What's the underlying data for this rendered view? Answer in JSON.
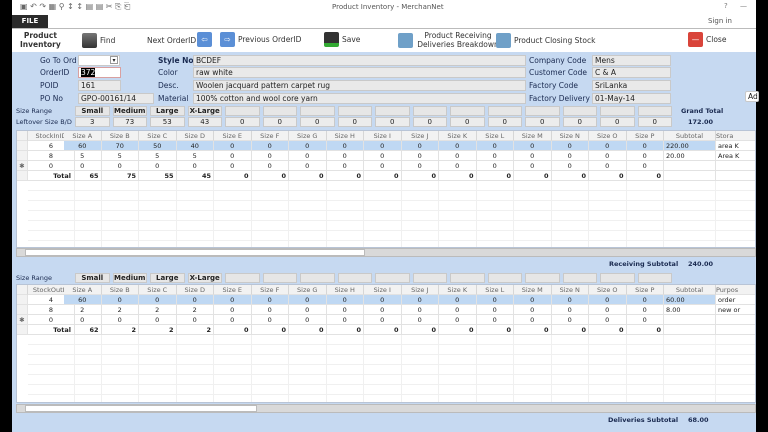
{
  "window": {
    "title": "Product Inventory - MerchanNet",
    "help": "?",
    "minimize": "—",
    "sign_in": "Sign in",
    "file_tab": "FILE"
  },
  "toolbar": {
    "form_title": "Product Inventory",
    "find": "Find",
    "next": "Next OrderID",
    "previous": "Previous OrderID",
    "save": "Save",
    "receiving": "Product Receiving Deliveries Breakdown",
    "closing": "Product Closing Stock",
    "close": "Close"
  },
  "header": {
    "go_to_ord": {
      "label": "Go To Ord",
      "value": ""
    },
    "order_id": {
      "label": "OrderID",
      "value": "372"
    },
    "poid": {
      "label": "POID",
      "value": "161"
    },
    "po_no": {
      "label": "PO No",
      "value": "GPO-00161/14"
    },
    "style_no": {
      "label": "Style No",
      "value": "BCDEF"
    },
    "color": {
      "label": "Color",
      "value": "raw white"
    },
    "desc": {
      "label": "Desc.",
      "value": "Woolen jacquard pattern carpet rug"
    },
    "material": {
      "label": "Material",
      "value": "100% cotton and wool core yarn"
    },
    "company_code": {
      "label": "Company Code",
      "value": "Mens"
    },
    "customer_code": {
      "label": "Customer Code",
      "value": "C & A"
    },
    "factory_code": {
      "label": "Factory Code",
      "value": "SriLanka"
    },
    "factory_delivery": {
      "label": "Factory Delivery",
      "value": "01-May-14"
    },
    "add_button": "Ad"
  },
  "size_range": {
    "label": "Size Range",
    "sizes": [
      "Small",
      "Medium",
      "Large",
      "X-Large",
      "",
      "",
      "",
      "",
      "",
      "",
      "",
      "",
      "",
      "",
      "",
      ""
    ]
  },
  "leftover": {
    "label": "Leftover Size B/D",
    "values": [
      "3",
      "73",
      "53",
      "43",
      "0",
      "0",
      "0",
      "0",
      "0",
      "0",
      "0",
      "0",
      "0",
      "0",
      "0",
      "0"
    ]
  },
  "grand_total": {
    "label": "Grand Total",
    "value": "172.00"
  },
  "receiving": {
    "columns": [
      "StockInID",
      "Size A",
      "Size B",
      "Size C",
      "Size D",
      "Size E",
      "Size F",
      "Size G",
      "Size H",
      "Size I",
      "Size J",
      "Size K",
      "Size L",
      "Size M",
      "Size N",
      "Size O",
      "Size P",
      "Subtotal",
      "Stora"
    ],
    "rows": [
      [
        "6",
        "60",
        "70",
        "50",
        "40",
        "0",
        "0",
        "0",
        "0",
        "0",
        "0",
        "0",
        "0",
        "0",
        "0",
        "0",
        "0",
        "220.00",
        "area K"
      ],
      [
        "8",
        "5",
        "5",
        "5",
        "5",
        "0",
        "0",
        "0",
        "0",
        "0",
        "0",
        "0",
        "0",
        "0",
        "0",
        "0",
        "0",
        "20.00",
        "Area K"
      ],
      [
        "0",
        "0",
        "0",
        "0",
        "0",
        "0",
        "0",
        "0",
        "0",
        "0",
        "0",
        "0",
        "0",
        "0",
        "0",
        "0",
        "0",
        "",
        ""
      ]
    ],
    "total": [
      "Total",
      "65",
      "75",
      "55",
      "45",
      "0",
      "0",
      "0",
      "0",
      "0",
      "0",
      "0",
      "0",
      "0",
      "0",
      "0",
      "0",
      "",
      ""
    ],
    "subtotal_label": "Receiving Subtotal",
    "subtotal_value": "240.00"
  },
  "deliveries": {
    "size_range_label": "Size Range",
    "sizes": [
      "Small",
      "Medium",
      "Large",
      "X-Large",
      "",
      "",
      "",
      "",
      "",
      "",
      "",
      "",
      "",
      "",
      "",
      ""
    ],
    "columns": [
      "StockOutIC",
      "Size A",
      "Size B",
      "Size C",
      "Size D",
      "Size E",
      "Size F",
      "Size G",
      "Size H",
      "Size I",
      "Size J",
      "Size K",
      "Size L",
      "Size M",
      "Size N",
      "Size O",
      "Size P",
      "Subtotal",
      "Purpos"
    ],
    "rows": [
      [
        "4",
        "60",
        "0",
        "0",
        "0",
        "0",
        "0",
        "0",
        "0",
        "0",
        "0",
        "0",
        "0",
        "0",
        "0",
        "0",
        "0",
        "60.00",
        "order"
      ],
      [
        "8",
        "2",
        "2",
        "2",
        "2",
        "0",
        "0",
        "0",
        "0",
        "0",
        "0",
        "0",
        "0",
        "0",
        "0",
        "0",
        "0",
        "8.00",
        "new or"
      ],
      [
        "0",
        "0",
        "0",
        "0",
        "0",
        "0",
        "0",
        "0",
        "0",
        "0",
        "0",
        "0",
        "0",
        "0",
        "0",
        "0",
        "0",
        "",
        ""
      ]
    ],
    "total": [
      "Total",
      "62",
      "2",
      "2",
      "2",
      "0",
      "0",
      "0",
      "0",
      "0",
      "0",
      "0",
      "0",
      "0",
      "0",
      "0",
      "0",
      "",
      ""
    ],
    "subtotal_label": "Deliveries Subtotal",
    "subtotal_value": "68.00"
  },
  "colors": {
    "form_bg": "#c6d9f1",
    "selected_row": "#bfd8f3",
    "label_text": "#1a2a50"
  }
}
